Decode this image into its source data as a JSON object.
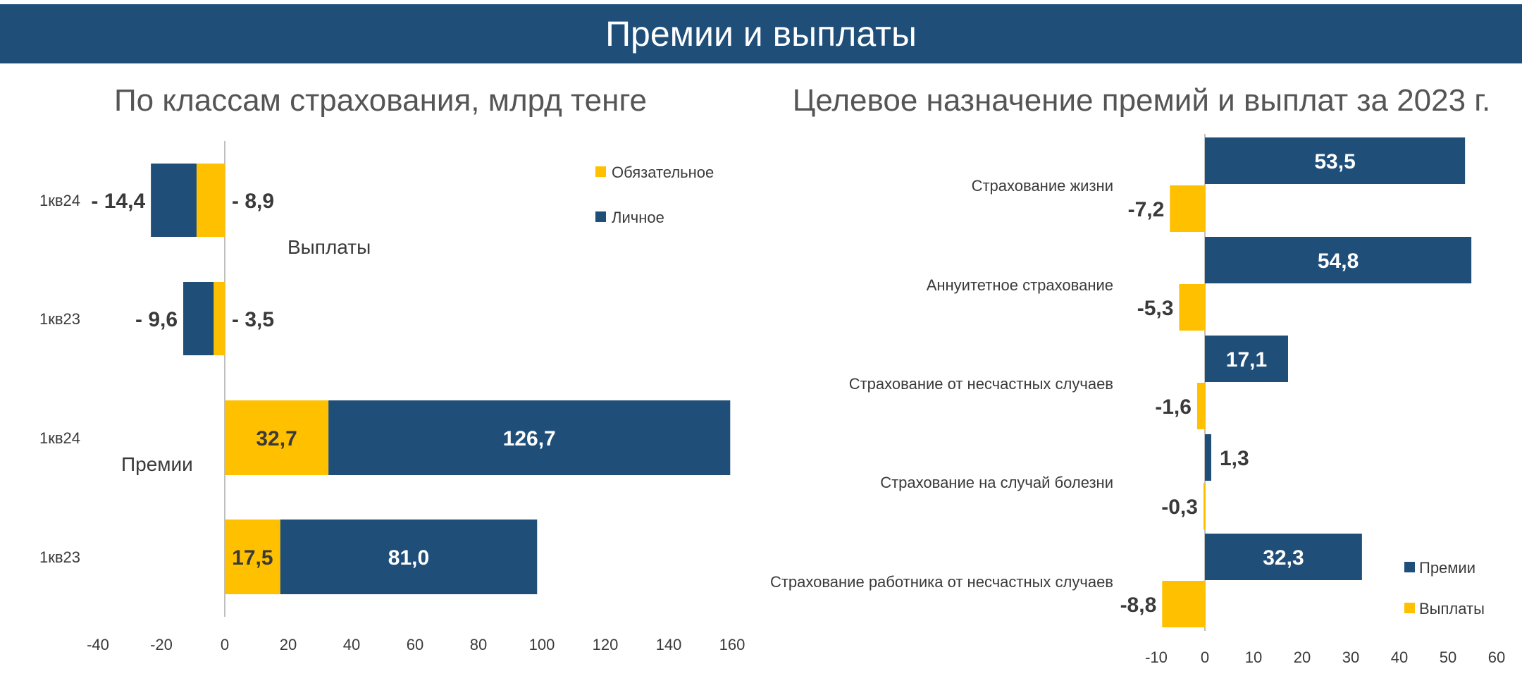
{
  "header": {
    "title": "Премии и выплаты"
  },
  "colors": {
    "banner": "#1f4e79",
    "personal": "#1f4e79",
    "mandatory": "#ffc000",
    "label_dark": "#3a3a3a",
    "label_light": "#ffffff"
  },
  "chart_data": [
    {
      "type": "bar",
      "orientation": "horizontal",
      "stacked": true,
      "title": "По классам страхования, млрд тенге",
      "group_labels": {
        "payouts": "Выплаты",
        "premiums": "Премии"
      },
      "categories": [
        "1кв24",
        "1кв23",
        "1кв24",
        "1кв23"
      ],
      "groups": [
        "payouts",
        "payouts",
        "premiums",
        "premiums"
      ],
      "series": [
        {
          "name": "Обязательное",
          "color": "#ffc000",
          "values": [
            -8.9,
            -3.5,
            32.7,
            17.5
          ]
        },
        {
          "name": "Личное",
          "color": "#1f4e79",
          "values": [
            -14.4,
            -9.6,
            126.7,
            81.0
          ]
        }
      ],
      "data_labels": {
        "mandatory": [
          "- 8,9",
          "- 3,5",
          "32,7",
          "17,5"
        ],
        "personal": [
          "- 14,4",
          "- 9,6",
          "126,7",
          "81,0"
        ]
      },
      "xlim": [
        -40,
        160
      ],
      "xticks": [
        "-40",
        "-20",
        "0",
        "20",
        "40",
        "60",
        "80",
        "100",
        "120",
        "140",
        "160"
      ],
      "legend_placement": "top-right",
      "grid": false
    },
    {
      "type": "bar",
      "orientation": "horizontal",
      "title": "Целевое назначение премий и выплат за 2023 г.",
      "categories": [
        "Страхование жизни",
        "Аннуитетное страхование",
        "Страхование от несчастных случаев",
        "Страхование на случай болезни",
        "Страхование работника от несчастных случаев"
      ],
      "series": [
        {
          "name": "Премии",
          "color": "#1f4e79",
          "values": [
            53.5,
            54.8,
            17.1,
            1.3,
            32.3
          ],
          "labels": [
            "53,5",
            "54,8",
            "17,1",
            "1,3",
            "32,3"
          ]
        },
        {
          "name": "Выплаты",
          "color": "#ffc000",
          "values": [
            -7.2,
            -5.3,
            -1.6,
            -0.3,
            -8.8
          ],
          "labels": [
            "-7,2",
            "-5,3",
            "-1,6",
            "-0,3",
            "-8,8"
          ]
        }
      ],
      "xlim": [
        -10,
        60
      ],
      "xticks": [
        "-10",
        "0",
        "10",
        "20",
        "30",
        "40",
        "50",
        "60"
      ],
      "legend_placement": "bottom-right",
      "grid": false
    }
  ]
}
